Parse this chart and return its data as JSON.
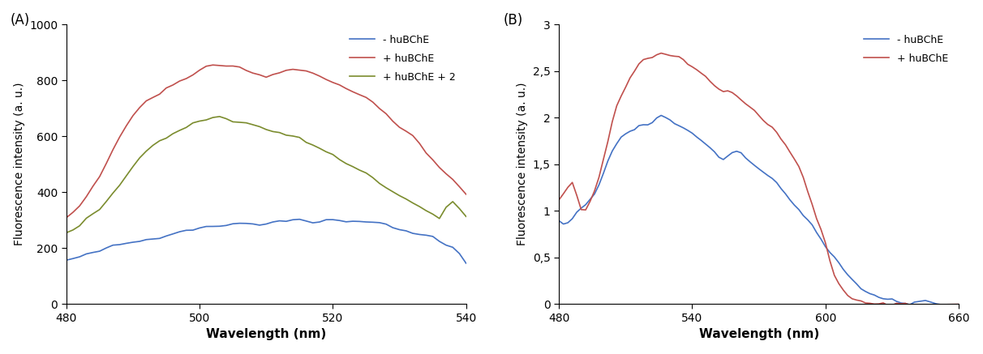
{
  "panel_A": {
    "label": "(A)",
    "xlabel": "Wavelength (nm)",
    "ylabel": "Fluorescence intensity (a. u.)",
    "xlim": [
      480,
      540
    ],
    "ylim": [
      0,
      1000
    ],
    "xticks": [
      480,
      500,
      520,
      540
    ],
    "yticks": [
      0,
      200,
      400,
      600,
      800,
      1000
    ],
    "legend_labels": [
      "- huBChE",
      "+ huBChE",
      "+ huBChE + 2"
    ],
    "colors": [
      "#4472C4",
      "#C0504D",
      "#7B8C2E"
    ],
    "blue_x": [
      480,
      481,
      482,
      483,
      484,
      485,
      486,
      487,
      488,
      489,
      490,
      491,
      492,
      493,
      494,
      495,
      496,
      497,
      498,
      499,
      500,
      501,
      502,
      503,
      504,
      505,
      506,
      507,
      508,
      509,
      510,
      511,
      512,
      513,
      514,
      515,
      516,
      517,
      518,
      519,
      520,
      521,
      522,
      523,
      524,
      525,
      526,
      527,
      528,
      529,
      530,
      531,
      532,
      533,
      534,
      535,
      536,
      537,
      538,
      539,
      540
    ],
    "blue_y": [
      155,
      162,
      168,
      175,
      182,
      190,
      198,
      206,
      212,
      217,
      221,
      226,
      231,
      236,
      242,
      248,
      254,
      260,
      265,
      269,
      272,
      275,
      278,
      281,
      285,
      288,
      291,
      290,
      287,
      284,
      288,
      291,
      294,
      298,
      302,
      304,
      299,
      294,
      300,
      304,
      300,
      297,
      294,
      297,
      299,
      298,
      295,
      290,
      283,
      276,
      269,
      262,
      255,
      249,
      243,
      238,
      224,
      213,
      203,
      178,
      145
    ],
    "red_x": [
      480,
      481,
      482,
      483,
      484,
      485,
      486,
      487,
      488,
      489,
      490,
      491,
      492,
      493,
      494,
      495,
      496,
      497,
      498,
      499,
      500,
      501,
      502,
      503,
      504,
      505,
      506,
      507,
      508,
      509,
      510,
      511,
      512,
      513,
      514,
      515,
      516,
      517,
      518,
      519,
      520,
      521,
      522,
      523,
      524,
      525,
      526,
      527,
      528,
      529,
      530,
      531,
      532,
      533,
      534,
      535,
      536,
      537,
      538,
      539,
      540
    ],
    "red_y": [
      310,
      332,
      358,
      385,
      415,
      452,
      500,
      548,
      598,
      638,
      668,
      698,
      722,
      742,
      756,
      770,
      784,
      798,
      812,
      826,
      836,
      845,
      852,
      857,
      855,
      850,
      844,
      836,
      826,
      818,
      808,
      820,
      830,
      838,
      845,
      840,
      832,
      825,
      816,
      808,
      798,
      786,
      774,
      762,
      748,
      732,
      716,
      698,
      680,
      660,
      638,
      618,
      595,
      568,
      540,
      515,
      492,
      466,
      440,
      415,
      393
    ],
    "green_x": [
      480,
      481,
      482,
      483,
      484,
      485,
      486,
      487,
      488,
      489,
      490,
      491,
      492,
      493,
      494,
      495,
      496,
      497,
      498,
      499,
      500,
      501,
      502,
      503,
      504,
      505,
      506,
      507,
      508,
      509,
      510,
      511,
      512,
      513,
      514,
      515,
      516,
      517,
      518,
      519,
      520,
      521,
      522,
      523,
      524,
      525,
      526,
      527,
      528,
      529,
      530,
      531,
      532,
      533,
      534,
      535,
      536,
      537,
      538,
      539,
      540
    ],
    "green_y": [
      248,
      265,
      282,
      300,
      320,
      342,
      368,
      398,
      430,
      462,
      494,
      524,
      548,
      566,
      582,
      596,
      608,
      622,
      634,
      644,
      655,
      662,
      666,
      668,
      664,
      658,
      652,
      646,
      640,
      633,
      625,
      618,
      612,
      605,
      598,
      590,
      580,
      570,
      558,
      545,
      530,
      516,
      502,
      488,
      476,
      462,
      448,
      434,
      420,
      406,
      390,
      375,
      360,
      346,
      332,
      318,
      303,
      340,
      358,
      342,
      318
    ]
  },
  "panel_B": {
    "label": "(B)",
    "xlabel": "Wavelength (nm)",
    "ylabel": "Fluorescence intensity (a. u.)",
    "xlim": [
      480,
      660
    ],
    "ylim": [
      0,
      3
    ],
    "xticks": [
      480,
      540,
      600,
      660
    ],
    "yticks": [
      0,
      0.5,
      1.0,
      1.5,
      2.0,
      2.5,
      3.0
    ],
    "ytick_labels": [
      "0",
      "0,5",
      "1",
      "1,5",
      "2",
      "2,5",
      "3"
    ],
    "legend_labels": [
      "- huBChE",
      "+ huBChE"
    ],
    "colors": [
      "#4472C4",
      "#C0504D"
    ],
    "blue_x": [
      480,
      482,
      484,
      486,
      488,
      490,
      492,
      494,
      496,
      498,
      500,
      502,
      504,
      506,
      508,
      510,
      512,
      514,
      516,
      518,
      520,
      522,
      524,
      526,
      528,
      530,
      532,
      534,
      536,
      538,
      540,
      542,
      544,
      546,
      548,
      550,
      552,
      554,
      556,
      558,
      560,
      562,
      564,
      566,
      568,
      570,
      572,
      574,
      576,
      578,
      580,
      582,
      584,
      586,
      588,
      590,
      592,
      594,
      596,
      598,
      600,
      602,
      604,
      606,
      608,
      610,
      612,
      614,
      616,
      618,
      620,
      622,
      624,
      626,
      628,
      630,
      632,
      634,
      636,
      638,
      640,
      645,
      650,
      655,
      660
    ],
    "blue_y": [
      0.87,
      0.84,
      0.88,
      0.93,
      0.98,
      1.03,
      1.07,
      1.12,
      1.18,
      1.28,
      1.4,
      1.52,
      1.64,
      1.72,
      1.78,
      1.82,
      1.86,
      1.88,
      1.9,
      1.92,
      1.95,
      1.98,
      2.01,
      2.0,
      1.97,
      1.95,
      1.92,
      1.9,
      1.88,
      1.86,
      1.83,
      1.8,
      1.76,
      1.72,
      1.67,
      1.62,
      1.57,
      1.55,
      1.58,
      1.62,
      1.64,
      1.62,
      1.58,
      1.54,
      1.5,
      1.46,
      1.42,
      1.38,
      1.34,
      1.3,
      1.24,
      1.18,
      1.12,
      1.06,
      1.0,
      0.94,
      0.88,
      0.82,
      0.76,
      0.7,
      0.62,
      0.56,
      0.5,
      0.44,
      0.38,
      0.32,
      0.26,
      0.22,
      0.18,
      0.14,
      0.11,
      0.09,
      0.07,
      0.05,
      0.04,
      0.03,
      0.02,
      0.02,
      0.01,
      0.01,
      0.01,
      0.005,
      0.003,
      0.001,
      0.0
    ],
    "red_x": [
      480,
      482,
      484,
      486,
      488,
      490,
      492,
      494,
      496,
      498,
      500,
      502,
      504,
      506,
      508,
      510,
      512,
      514,
      516,
      518,
      520,
      522,
      524,
      526,
      528,
      530,
      532,
      534,
      536,
      538,
      540,
      542,
      544,
      546,
      548,
      550,
      552,
      554,
      556,
      558,
      560,
      562,
      564,
      566,
      568,
      570,
      572,
      574,
      576,
      578,
      580,
      582,
      584,
      586,
      588,
      590,
      592,
      594,
      596,
      598,
      600,
      602,
      604,
      606,
      608,
      610,
      612,
      614,
      616,
      618,
      620,
      622,
      624,
      626,
      628,
      630,
      632,
      634,
      636,
      638,
      640,
      645,
      650,
      655,
      660
    ],
    "red_y": [
      1.15,
      1.2,
      1.25,
      1.3,
      1.18,
      1.02,
      1.0,
      1.1,
      1.22,
      1.36,
      1.54,
      1.74,
      1.96,
      2.12,
      2.24,
      2.34,
      2.44,
      2.52,
      2.58,
      2.62,
      2.64,
      2.65,
      2.67,
      2.68,
      2.68,
      2.67,
      2.66,
      2.64,
      2.61,
      2.58,
      2.55,
      2.52,
      2.48,
      2.44,
      2.4,
      2.36,
      2.32,
      2.28,
      2.26,
      2.24,
      2.22,
      2.18,
      2.14,
      2.1,
      2.06,
      2.02,
      1.98,
      1.94,
      1.9,
      1.85,
      1.78,
      1.7,
      1.62,
      1.54,
      1.45,
      1.35,
      1.22,
      1.08,
      0.92,
      0.8,
      0.64,
      0.46,
      0.32,
      0.22,
      0.14,
      0.08,
      0.05,
      0.03,
      0.02,
      0.01,
      0.01,
      0.005,
      0.003,
      0.002,
      0.001,
      0.001,
      0.0,
      0.0,
      0.0,
      0.0,
      0.0,
      0.0,
      0.0,
      0.0,
      0.0
    ]
  },
  "fig_background": "#ffffff"
}
